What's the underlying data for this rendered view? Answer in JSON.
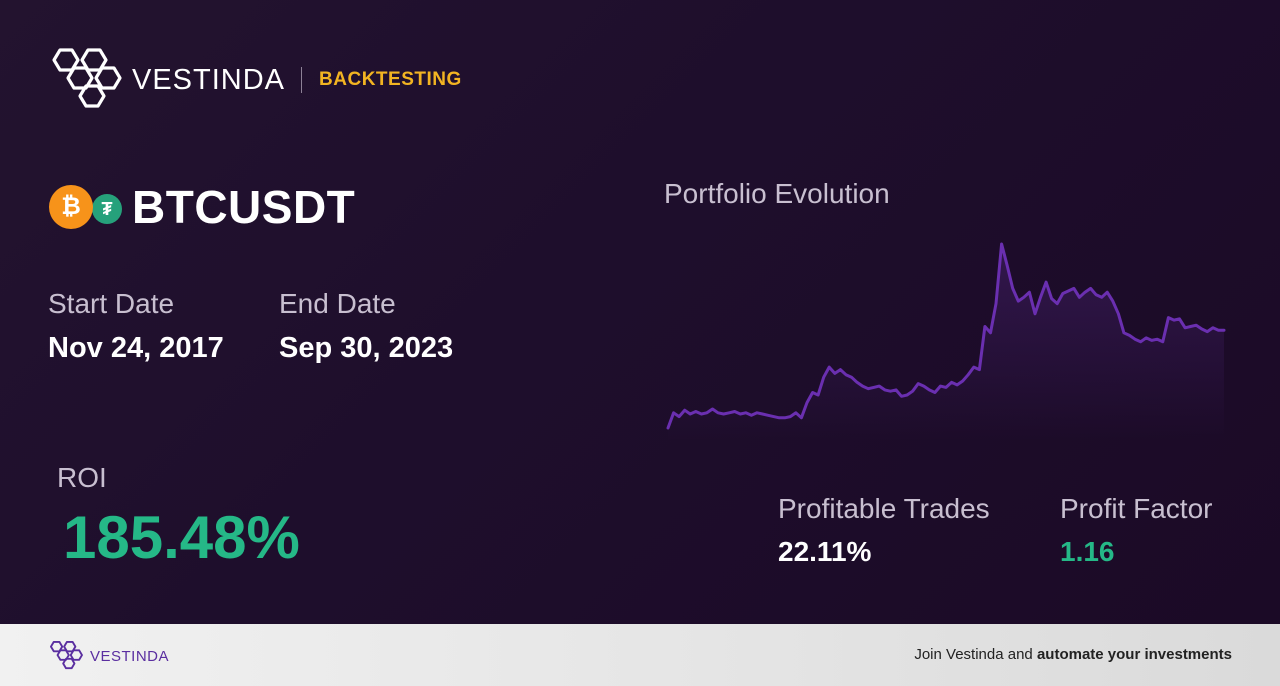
{
  "header": {
    "brand_name": "VESTINDA",
    "tag": "BACKTESTING",
    "tag_color": "#f2b422"
  },
  "pair": {
    "label": "BTCUSDT",
    "base_icon": "bitcoin-icon",
    "base_symbol": "₿",
    "quote_icon": "tether-icon",
    "quote_symbol": "₮"
  },
  "dates": {
    "start_label": "Start Date",
    "start_value": "Nov 24, 2017",
    "end_label": "End Date",
    "end_value": "Sep 30, 2023"
  },
  "chart_data": {
    "type": "line",
    "title": "Portfolio Evolution",
    "line_color": "#6a2fb0",
    "values": [
      100,
      112,
      109,
      114,
      111,
      113,
      111,
      112,
      115,
      112,
      111,
      112,
      113,
      111,
      112,
      110,
      112,
      111,
      110,
      109,
      108,
      108,
      109,
      112,
      108,
      120,
      128,
      126,
      140,
      148,
      143,
      146,
      142,
      140,
      136,
      133,
      131,
      132,
      133,
      130,
      129,
      130,
      125,
      126,
      129,
      135,
      133,
      130,
      128,
      133,
      132,
      136,
      134,
      137,
      142,
      148,
      146,
      180,
      175,
      198,
      245,
      228,
      210,
      200,
      203,
      207,
      190,
      203,
      215,
      202,
      198,
      206,
      208,
      210,
      203,
      207,
      210,
      205,
      203,
      207,
      200,
      190,
      175,
      173,
      170,
      168,
      171,
      169,
      170,
      168,
      187,
      185,
      186,
      179,
      180,
      181,
      178,
      176,
      179,
      177,
      177
    ]
  },
  "metrics": {
    "roi_label": "ROI",
    "roi_value": "185.48%",
    "profitable_trades_label": "Profitable Trades",
    "profitable_trades_value": "22.11%",
    "profit_factor_label": "Profit Factor",
    "profit_factor_value": "1.16",
    "positive_color": "#25b887"
  },
  "footer": {
    "brand_name": "VESTINDA",
    "cta_prefix": "Join Vestinda and ",
    "cta_bold": "automate your investments"
  }
}
